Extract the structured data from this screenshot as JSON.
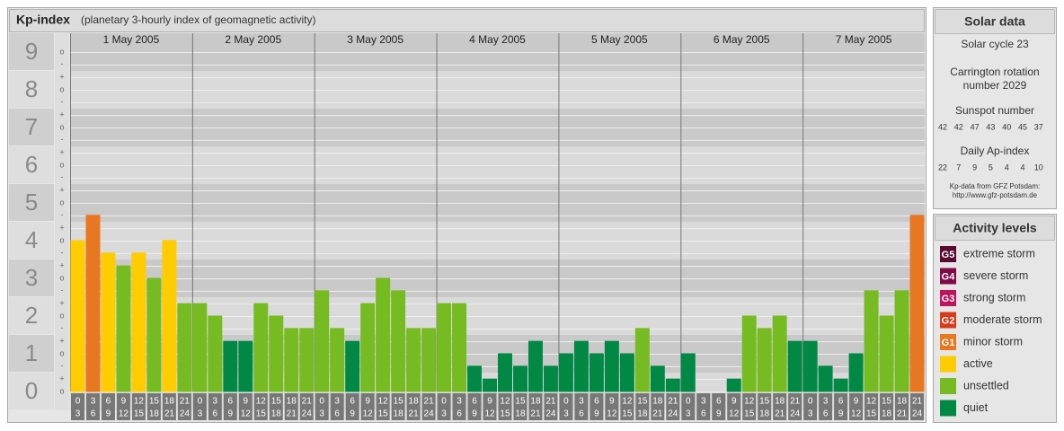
{
  "chart_data": {
    "type": "bar",
    "title": "Kp-index",
    "subtitle": "(planetary 3-hourly index of geomagnetic activity)",
    "days": [
      "1 May 2005",
      "2 May 2005",
      "3 May 2005",
      "4 May 2005",
      "5 May 2005",
      "6 May 2005",
      "7 May 2005"
    ],
    "hours": [
      [
        0,
        3
      ],
      [
        3,
        6
      ],
      [
        6,
        9
      ],
      [
        9,
        12
      ],
      [
        12,
        15
      ],
      [
        15,
        18
      ],
      [
        18,
        21
      ],
      [
        21,
        24
      ]
    ],
    "values": [
      4,
      4.67,
      3.67,
      3.33,
      3.67,
      3,
      4,
      2.33,
      2.33,
      2,
      1.33,
      1.33,
      2.33,
      2,
      1.67,
      1.67,
      2.67,
      1.67,
      1.33,
      2.33,
      3,
      2.67,
      1.67,
      1.67,
      2.33,
      2.33,
      0.67,
      0.33,
      1,
      0.67,
      1.33,
      0.67,
      1,
      1.33,
      1,
      1.33,
      1,
      1.67,
      0.67,
      0.33,
      1,
      0,
      0,
      0.33,
      2,
      1.67,
      2,
      1.33,
      1.33,
      0.67,
      0.33,
      1,
      2.67,
      2,
      2.67,
      4.67
    ],
    "colors": [
      "#ffcc00",
      "#e87722",
      "#ffcc00",
      "#77bb22",
      "#ffcc00",
      "#77bb22",
      "#ffcc00",
      "#77bb22",
      "#77bb22",
      "#77bb22",
      "#008844",
      "#008844",
      "#77bb22",
      "#77bb22",
      "#77bb22",
      "#77bb22",
      "#77bb22",
      "#77bb22",
      "#008844",
      "#77bb22",
      "#77bb22",
      "#77bb22",
      "#77bb22",
      "#77bb22",
      "#77bb22",
      "#77bb22",
      "#008844",
      "#008844",
      "#008844",
      "#008844",
      "#008844",
      "#008844",
      "#008844",
      "#008844",
      "#008844",
      "#008844",
      "#008844",
      "#77bb22",
      "#008844",
      "#008844",
      "#008844",
      "#008844",
      "#008844",
      "#008844",
      "#77bb22",
      "#77bb22",
      "#77bb22",
      "#008844",
      "#008844",
      "#008844",
      "#008844",
      "#008844",
      "#77bb22",
      "#77bb22",
      "#77bb22",
      "#e87722"
    ],
    "ylim": [
      -0.5,
      9.5
    ],
    "yticks": [
      0,
      1,
      2,
      3,
      4,
      5,
      6,
      7,
      8,
      9
    ],
    "yminorticks": [
      {
        "value": 0,
        "label": "o"
      },
      {
        "value": 0.33,
        "label": "+"
      },
      {
        "value": 0.67,
        "label": "-"
      },
      {
        "value": 1,
        "label": "o"
      },
      {
        "value": 1.33,
        "label": "+"
      },
      {
        "value": 1.67,
        "label": "-"
      },
      {
        "value": 2,
        "label": "o"
      },
      {
        "value": 2.33,
        "label": "+"
      },
      {
        "value": 2.67,
        "label": "-"
      },
      {
        "value": 3,
        "label": "o"
      },
      {
        "value": 3.33,
        "label": "+"
      },
      {
        "value": 3.67,
        "label": "-"
      },
      {
        "value": 4,
        "label": "o"
      },
      {
        "value": 4.33,
        "label": "+"
      },
      {
        "value": 4.67,
        "label": "-"
      },
      {
        "value": 5,
        "label": "o"
      },
      {
        "value": 5.33,
        "label": "+"
      },
      {
        "value": 5.67,
        "label": "-"
      },
      {
        "value": 6,
        "label": "o"
      },
      {
        "value": 6.33,
        "label": "+"
      },
      {
        "value": 6.67,
        "label": "-"
      },
      {
        "value": 7,
        "label": "o"
      },
      {
        "value": 7.33,
        "label": "+"
      },
      {
        "value": 7.67,
        "label": "-"
      },
      {
        "value": 8,
        "label": "o"
      },
      {
        "value": 8.33,
        "label": "+"
      },
      {
        "value": 8.67,
        "label": "-"
      },
      {
        "value": 9,
        "label": "o"
      }
    ],
    "grid": true
  },
  "solar_data": {
    "title": "Solar data",
    "solar_cycle": "Solar cycle 23",
    "carrington": [
      "Carrington rotation",
      "number 2029"
    ],
    "sunspot_title": "Sunspot number",
    "sunspot_numbers": [
      42,
      42,
      47,
      43,
      40,
      45,
      37
    ],
    "ap_title": "Daily Ap-index",
    "ap_index": [
      22,
      7,
      9,
      5,
      4,
      4,
      10
    ],
    "source": [
      "Kp-data from GFZ Potsdam:",
      "http://www.gfz-potsdam.de"
    ]
  },
  "activity_levels": {
    "title": "Activity levels",
    "items": [
      {
        "badge": "G5",
        "name": "extreme storm",
        "color": "#5a0a30"
      },
      {
        "badge": "G4",
        "name": "severe storm",
        "color": "#800a45"
      },
      {
        "badge": "G3",
        "name": "strong storm",
        "color": "#c0135e"
      },
      {
        "badge": "G2",
        "name": "moderate storm",
        "color": "#d93a1a"
      },
      {
        "badge": "G1",
        "name": "minor storm",
        "color": "#e87722"
      },
      {
        "name": "active",
        "color": "#ffcc00"
      },
      {
        "name": "unsettled",
        "color": "#77bb22"
      },
      {
        "name": "quiet",
        "color": "#008844"
      }
    ]
  }
}
